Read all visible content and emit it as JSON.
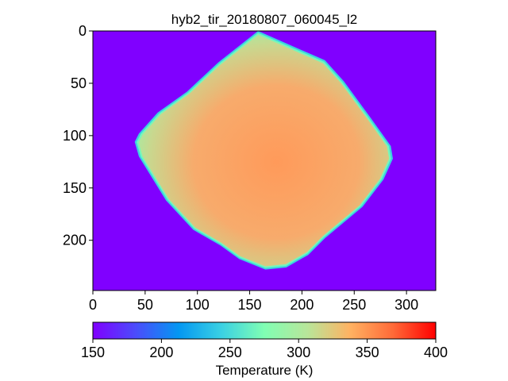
{
  "chart_data": {
    "type": "heatmap",
    "title": "hyb2_tir_20180807_060045_l2",
    "image_size": [
      328,
      248
    ],
    "xlim": [
      0,
      328
    ],
    "ylim": [
      248,
      0
    ],
    "xticks": [
      0,
      50,
      100,
      150,
      200,
      250,
      300
    ],
    "yticks": [
      0,
      50,
      100,
      150,
      200
    ],
    "background_value": 150,
    "object_outline": [
      [
        158,
        0
      ],
      [
        190,
        14
      ],
      [
        222,
        28
      ],
      [
        240,
        48
      ],
      [
        265,
        82
      ],
      [
        285,
        110
      ],
      [
        287,
        122
      ],
      [
        278,
        142
      ],
      [
        258,
        168
      ],
      [
        222,
        198
      ],
      [
        206,
        214
      ],
      [
        185,
        226
      ],
      [
        165,
        228
      ],
      [
        140,
        218
      ],
      [
        122,
        205
      ],
      [
        96,
        190
      ],
      [
        70,
        162
      ],
      [
        44,
        120
      ],
      [
        40,
        106
      ],
      [
        44,
        98
      ],
      [
        62,
        78
      ],
      [
        90,
        58
      ],
      [
        120,
        30
      ]
    ],
    "object_typical_value": 318,
    "colormap": "rainbow",
    "colorbar": {
      "label": "Temperature (K)",
      "orientation": "horizontal",
      "range": [
        150,
        400
      ],
      "ticks": [
        150,
        200,
        250,
        300,
        350,
        400
      ]
    }
  }
}
